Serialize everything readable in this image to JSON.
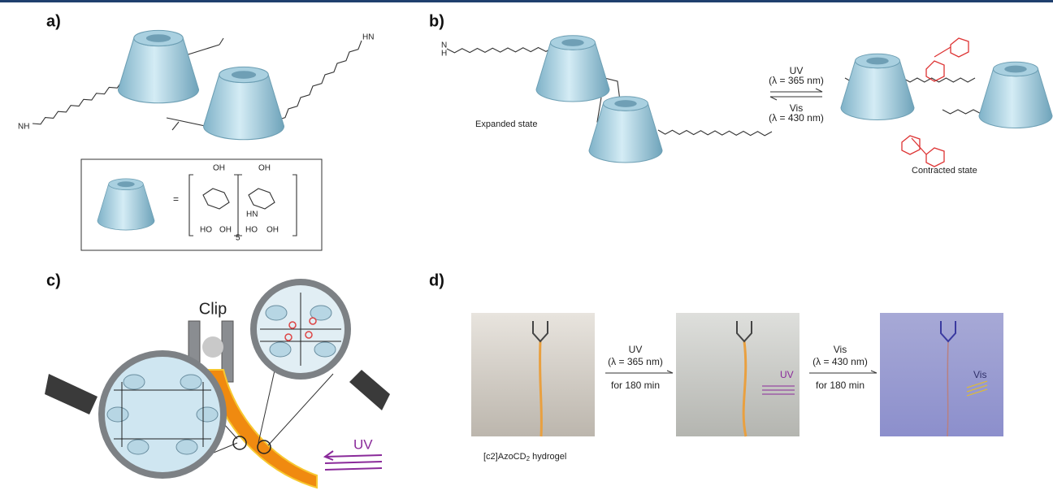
{
  "panel_a": {
    "label": "a)",
    "end_left": "NH",
    "end_right": "HN",
    "legend": {
      "equals": "=",
      "hydroxyls": [
        "OH",
        "HO",
        "OH",
        "OH",
        "HO",
        "OH"
      ],
      "amine": "HN",
      "repeat": "5"
    }
  },
  "panel_b": {
    "label": "b)",
    "left_state": "Expanded state",
    "right_state": "Contracted state",
    "forward": {
      "light": "UV",
      "wavelength": "(λ = 365 nm)"
    },
    "backward": {
      "light": "Vis",
      "wavelength": "(λ = 430 nm)"
    },
    "amine": "N",
    "amine_h": "H"
  },
  "panel_c": {
    "label": "c)",
    "clip": "Clip",
    "light": "UV"
  },
  "panel_d": {
    "label": "d)",
    "step1": {
      "light": "UV",
      "wavelength": "(λ = 365 nm)",
      "time": "for 180 min"
    },
    "step2": {
      "light": "Vis",
      "wavelength": "(λ = 430 nm)",
      "time": "for 180 min"
    },
    "caption": {
      "main": "[c2]AzoCD",
      "sub": "2",
      "tail": " hydrogel"
    },
    "photo2_light": "UV",
    "photo3_light": "Vis"
  }
}
